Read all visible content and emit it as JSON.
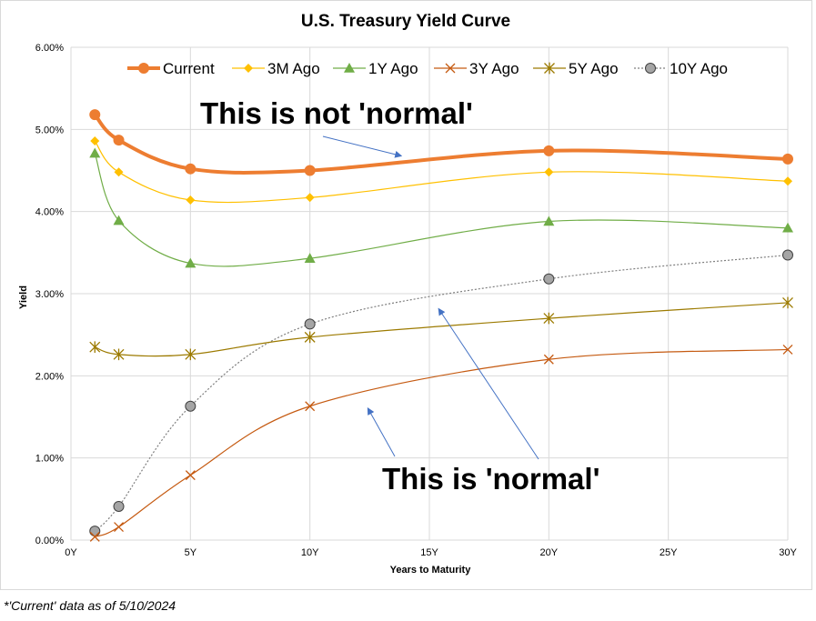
{
  "chart_data": {
    "type": "line",
    "title": "U.S. Treasury Yield Curve",
    "xlabel": "Years to Maturity",
    "ylabel": "Yield",
    "xlim": [
      0,
      30
    ],
    "ylim": [
      0,
      6
    ],
    "x_ticks": [
      {
        "value": 0,
        "label": "0Y"
      },
      {
        "value": 5,
        "label": "5Y"
      },
      {
        "value": 10,
        "label": "10Y"
      },
      {
        "value": 15,
        "label": "15Y"
      },
      {
        "value": 20,
        "label": "20Y"
      },
      {
        "value": 25,
        "label": "25Y"
      },
      {
        "value": 30,
        "label": "30Y"
      }
    ],
    "y_ticks": [
      {
        "value": 0,
        "label": "0.00%"
      },
      {
        "value": 1,
        "label": "1.00%"
      },
      {
        "value": 2,
        "label": "2.00%"
      },
      {
        "value": 3,
        "label": "3.00%"
      },
      {
        "value": 4,
        "label": "4.00%"
      },
      {
        "value": 5,
        "label": "5.00%"
      },
      {
        "value": 6,
        "label": "6.00%"
      }
    ],
    "grid": true,
    "legend_position": "top",
    "x": [
      1,
      2,
      5,
      10,
      20,
      30
    ],
    "series": [
      {
        "name": "Current",
        "values": [
          5.18,
          4.87,
          4.52,
          4.5,
          4.74,
          4.64
        ],
        "color": "#ed7d31",
        "marker": "circle",
        "line": "solid",
        "width": 4
      },
      {
        "name": "3M Ago",
        "values": [
          4.86,
          4.48,
          4.14,
          4.17,
          4.48,
          4.37
        ],
        "color": "#ffc000",
        "marker": "diamond",
        "line": "solid",
        "width": 1.2
      },
      {
        "name": "1Y Ago",
        "values": [
          4.71,
          3.89,
          3.37,
          3.43,
          3.88,
          3.8
        ],
        "color": "#70ad47",
        "marker": "triangle",
        "line": "solid",
        "width": 1.2
      },
      {
        "name": "3Y Ago",
        "values": [
          0.04,
          0.16,
          0.79,
          1.63,
          2.2,
          2.32
        ],
        "color": "#c55a11",
        "marker": "x",
        "line": "solid",
        "width": 1.2
      },
      {
        "name": "5Y Ago",
        "values": [
          2.35,
          2.26,
          2.26,
          2.47,
          2.7,
          2.89
        ],
        "color": "#9c7a00",
        "marker": "star",
        "line": "solid",
        "width": 1.2
      },
      {
        "name": "10Y Ago",
        "values": [
          0.11,
          0.41,
          1.63,
          2.63,
          3.18,
          3.47
        ],
        "color": "#7f7f7f",
        "marker": "circle-gray",
        "line": "dotted",
        "width": 1.2
      }
    ],
    "annotations": [
      {
        "text": "This is not 'normal'",
        "arrow_to": {
          "x": 12,
          "y": 4.5
        }
      },
      {
        "text": "This is 'normal'",
        "arrow_to": [
          {
            "x": 15.5,
            "y": 2.95
          },
          {
            "x": 12.5,
            "y": 1.75
          }
        ]
      }
    ]
  },
  "footnote": "*'Current' data as of 5/10/2024"
}
